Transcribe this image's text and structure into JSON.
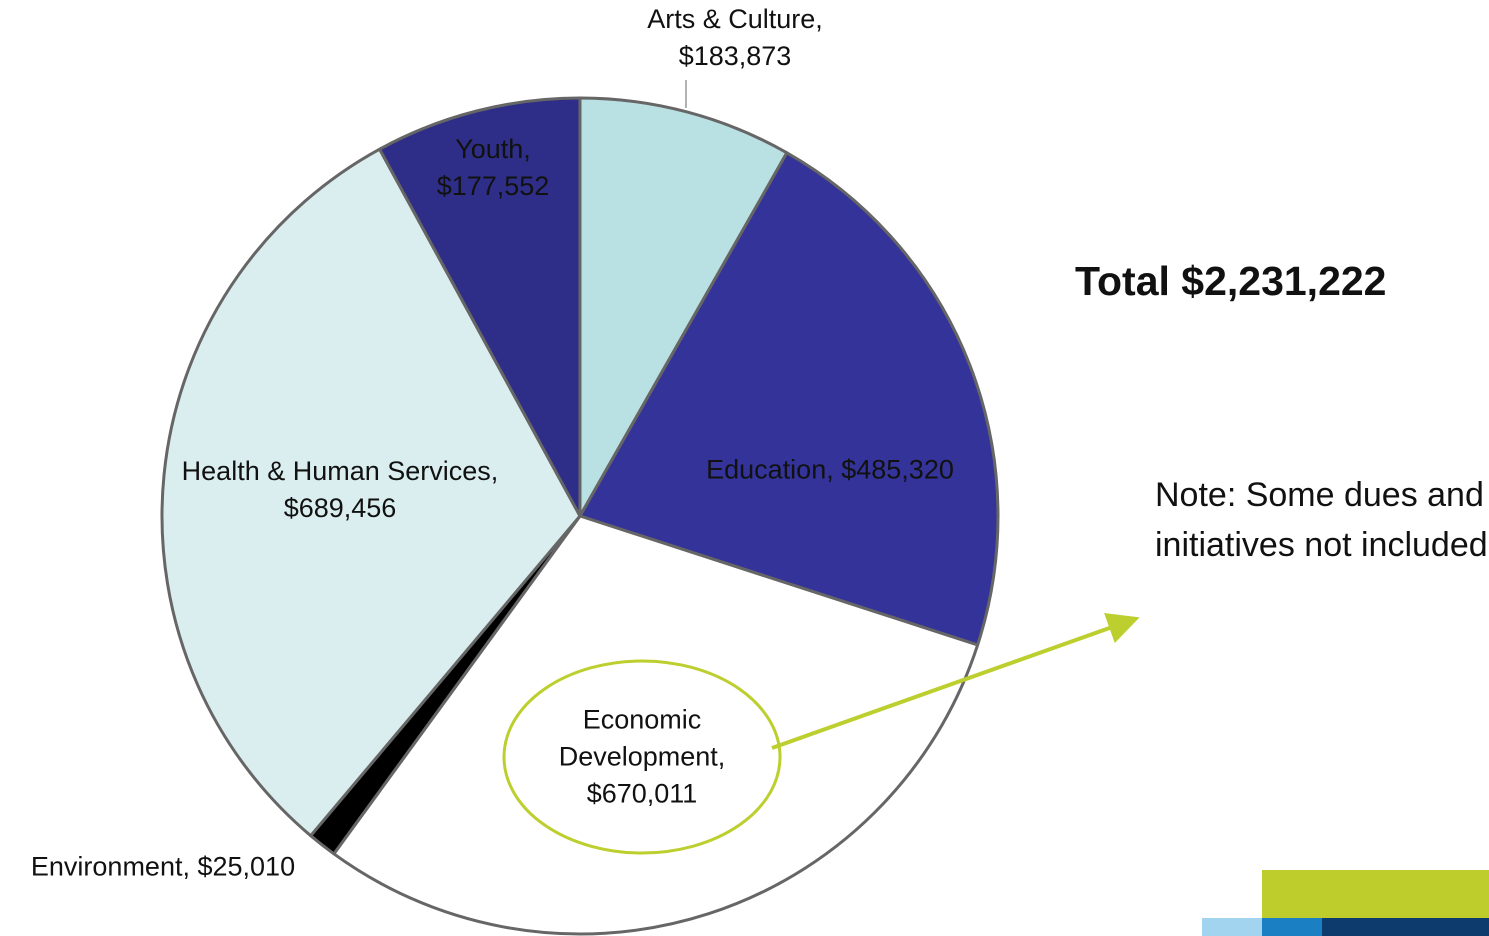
{
  "chart_data": {
    "type": "pie",
    "categories": [
      "Arts & Culture,",
      "Education,",
      "Economic Development,",
      "Environment,",
      "Health & Human Services,",
      "Youth,"
    ],
    "values": [
      183873,
      485320,
      670011,
      25010,
      689456,
      177552
    ],
    "value_labels": [
      "$183,873",
      "$485,320",
      "$670,011",
      "$25,010",
      "$689,456",
      "$177,552"
    ],
    "colors": [
      "#b9e0e3",
      "#333399",
      "#ffffff",
      "#000000",
      "#daeef0",
      "#2e2e88"
    ],
    "annotations": [
      "Total $2,231,222",
      "Note: Some dues and initiatives not included"
    ]
  }
}
